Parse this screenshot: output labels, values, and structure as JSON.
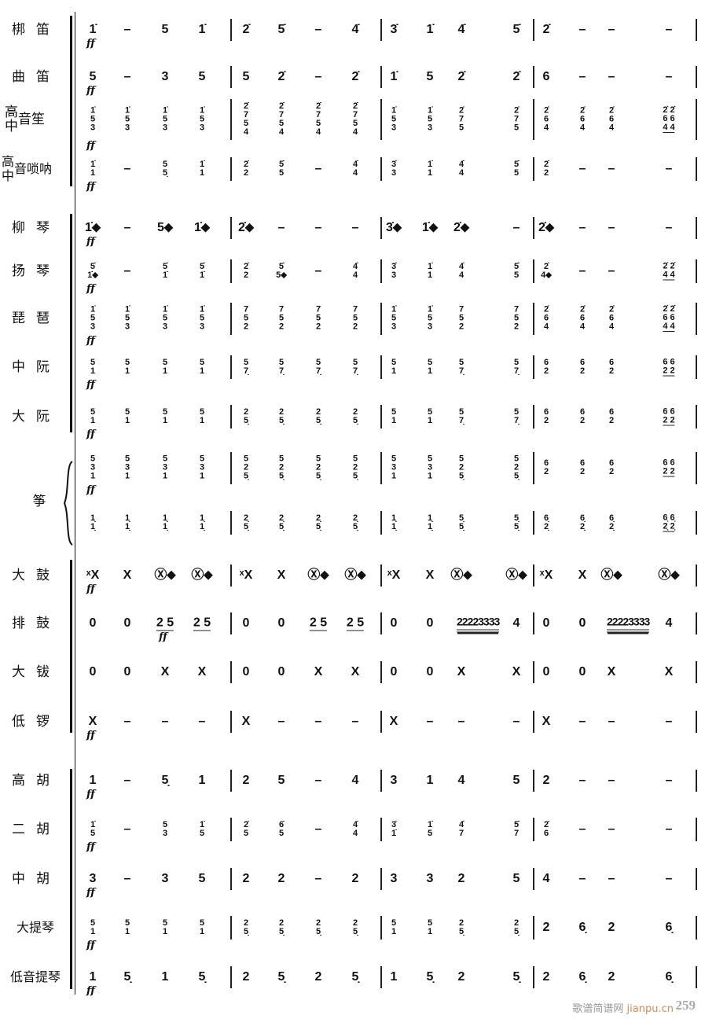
{
  "rows": [
    {
      "label": "梆笛",
      "ff": true,
      "beats": [
        "1̇",
        "–",
        "5",
        "1̇",
        "2̇",
        "5̇",
        "–",
        "4̇",
        "3̇",
        "1̇",
        "4̇",
        "5̇",
        "2̇",
        "–",
        "–",
        "–"
      ]
    },
    {
      "label": "曲笛",
      "ff": true,
      "beats": [
        "5",
        "–",
        "3",
        "5",
        "5",
        "2̇",
        "–",
        "2̇",
        "1̇",
        "5",
        "2̇",
        "2̇",
        "6",
        "–",
        "–",
        "–"
      ]
    },
    {
      "label_stack": [
        "高",
        "中"
      ],
      "label_rest": "音笙",
      "ff": true,
      "beats": [
        "1̇/5/3",
        "1̇/5/3",
        "1̇/5/3",
        "1̇/5/3",
        "2̇/7/5/4",
        "2̇/7/5/4",
        "2̇/7/5/4",
        "2̇/7/5/4",
        "1̇/5/3",
        "1̇/5/3",
        "2̇/7/5",
        "2̇/7/5",
        "2̇/6/4",
        "2̇/6/4",
        "2̇/6/4",
        "_2̇ 2̇/6 6/4 4"
      ]
    },
    {
      "label_stack": [
        "高",
        "中"
      ],
      "label_rest": "音唢呐",
      "ff": true,
      "beats": [
        "1̇/1",
        "–",
        "5/5̣",
        "1̇/1",
        "2̇/2",
        "5̇/5",
        "–",
        "4̇/4",
        "3̇/3",
        "1̇/1",
        "4̇/4",
        "5̇/5",
        "2̇/2",
        "–",
        "–",
        "–"
      ]
    },
    {
      "label": "柳琴",
      "ff": true,
      "beats": [
        "1̇⬥",
        "–",
        "5⬥",
        "1̇⬥",
        "2̇⬥",
        "–",
        "–",
        "–",
        "3̇⬥",
        "1̇⬥",
        "2̇⬥",
        "–",
        "2̇⬥",
        "–",
        "–",
        "–"
      ]
    },
    {
      "label": "扬琴",
      "ff": true,
      "beats": [
        "5̇/1̇⬥",
        "–",
        "5̇/1̇",
        "5̇/1̇",
        "2̇/2",
        "5̇/5⬥",
        "–",
        "4̇/4",
        "3̇/3",
        "1̇/1",
        "4̇/4",
        "5̇/5",
        "2̇/4⬥",
        "–",
        "–",
        "_2̇ 2̇/4 4"
      ]
    },
    {
      "label": "琵琶",
      "ff": true,
      "beats": [
        "1̇/5/3",
        "1̇/5/3",
        "1̇/5/3",
        "1̇/5/3",
        "7/5/2",
        "7/5/2",
        "7/5/2",
        "7/5/2",
        "1̇/5/3",
        "1̇/5/3",
        "7/5/2",
        "7/5/2",
        "2̇/6/4",
        "2̇/6/4",
        "2̇/6/4",
        "_2̇ 2̇/6 6/4 4"
      ]
    },
    {
      "label": "中阮",
      "ff": true,
      "beats": [
        "5/1",
        "5/1",
        "5/1",
        "5/1",
        "5/7̣",
        "5/7̣",
        "5/7̣",
        "5/7̣",
        "5/1",
        "5/1",
        "5/7̣",
        "5/7̣",
        "6/2",
        "6/2",
        "6/2",
        "_6 6/2 2"
      ]
    },
    {
      "label": "大阮",
      "ff": true,
      "beats": [
        "5/1",
        "5/1",
        "5/1",
        "5/1",
        "2/5̣",
        "2/5̣",
        "2/5̣",
        "2/5̣",
        "5/1",
        "5/1",
        "5/7̣",
        "5/7̣",
        "6/2",
        "6/2",
        "6/2",
        "_6 6/2 2"
      ]
    },
    {
      "label": "",
      "ff": true,
      "beats": [
        "5/3/1",
        "5/3/1",
        "5/3/1",
        "5/3/1",
        "5/2/5̣",
        "5/2/5̣",
        "5/2/5̣",
        "5/2/5̣",
        "5/3/1",
        "5/3/1",
        "5/2/5̣",
        "5/2/5̣",
        "6/2",
        "6/2",
        "6/2",
        "_6 6/2 2"
      ]
    },
    {
      "label": "",
      "ff": false,
      "beats": [
        "1̣/1̣",
        "1̣/1̣",
        "1̣/1̣",
        "1̣/1̣",
        "2̣/5̣",
        "2̣/5̣",
        "2̣/5̣",
        "2̣/5̣",
        "1̣/1̣",
        "1̣/1̣",
        "5̣/5̣",
        "5̣/5̣",
        "6̣/2̣",
        "6̣/2̣",
        "6̣/2̣",
        "_6̣ 6̣/2̣ 2̣"
      ]
    },
    {
      "label": "大鼓",
      "ff": true,
      "beats": [
        "ˣX",
        "X",
        "Ⓧ⬥",
        "Ⓧ⬥",
        "ˣX",
        "X",
        "Ⓧ⬥",
        "Ⓧ⬥",
        "ˣX",
        "X",
        "Ⓧ⬥",
        "Ⓧ⬥",
        "ˣX",
        "X",
        "Ⓧ⬥",
        "Ⓧ⬥"
      ]
    },
    {
      "label": "排鼓",
      "ff_beat": 2,
      "beats": [
        "0",
        "0",
        "_2 5",
        "_2 5",
        "0",
        "0",
        "_2 5",
        "_2 5",
        "0",
        "0",
        "≡22223333",
        "4",
        "0",
        "0",
        "≡22223333",
        "4"
      ]
    },
    {
      "label": "大钹",
      "ff": false,
      "beats": [
        "0",
        "0",
        "X",
        "X",
        "0",
        "0",
        "X",
        "X",
        "0",
        "0",
        "X",
        "X",
        "0",
        "0",
        "X",
        "X"
      ]
    },
    {
      "label": "低锣",
      "ff": true,
      "beats": [
        "X",
        "–",
        "–",
        "–",
        "X",
        "–",
        "–",
        "–",
        "X",
        "–",
        "–",
        "–",
        "X",
        "–",
        "–",
        "–"
      ]
    },
    {
      "label": "高胡",
      "ff": true,
      "beats": [
        "1",
        "–",
        "5̣",
        "1",
        "2",
        "5",
        "–",
        "4",
        "3",
        "1",
        "4",
        "5",
        "2",
        "–",
        "–",
        "–"
      ]
    },
    {
      "label": "二胡",
      "ff": true,
      "beats": [
        "1̇/5",
        "–",
        "5/3",
        "1̇/5",
        "2̇/5",
        "6̇/5",
        "–",
        "4̇/4",
        "3̇/1̇",
        "1̇/5",
        "4̇/7",
        "5̇/7",
        "2̇/6",
        "–",
        "–",
        "–"
      ]
    },
    {
      "label": "中胡",
      "ff": true,
      "beats": [
        "3",
        "–",
        "3",
        "5",
        "2",
        "2",
        "–",
        "2",
        "3",
        "3",
        "2",
        "5",
        "4",
        "–",
        "–",
        "–"
      ]
    },
    {
      "label": "大提琴",
      "ff": true,
      "beats": [
        "5/1",
        "5/1",
        "5/1",
        "5/1",
        "2/5̣",
        "2/5̣",
        "2/5̣",
        "2/5̣",
        "5/1",
        "5/1",
        "2/5̣",
        "2/5̣",
        "2",
        "6̣",
        "2",
        "6̣"
      ]
    },
    {
      "label": "低音提琴",
      "ff": true,
      "beats": [
        "1",
        "5̣",
        "1",
        "5̣",
        "2",
        "5̣",
        "2",
        "5̣",
        "1",
        "5̣",
        "2",
        "5̣",
        "2",
        "6̣",
        "2",
        "6̣"
      ]
    }
  ],
  "zheng_label": "筝",
  "dynamic": "ff",
  "watermark": {
    "site": "歌谱简谱网",
    "domain": "jianpu.cn"
  },
  "page_number": "259"
}
